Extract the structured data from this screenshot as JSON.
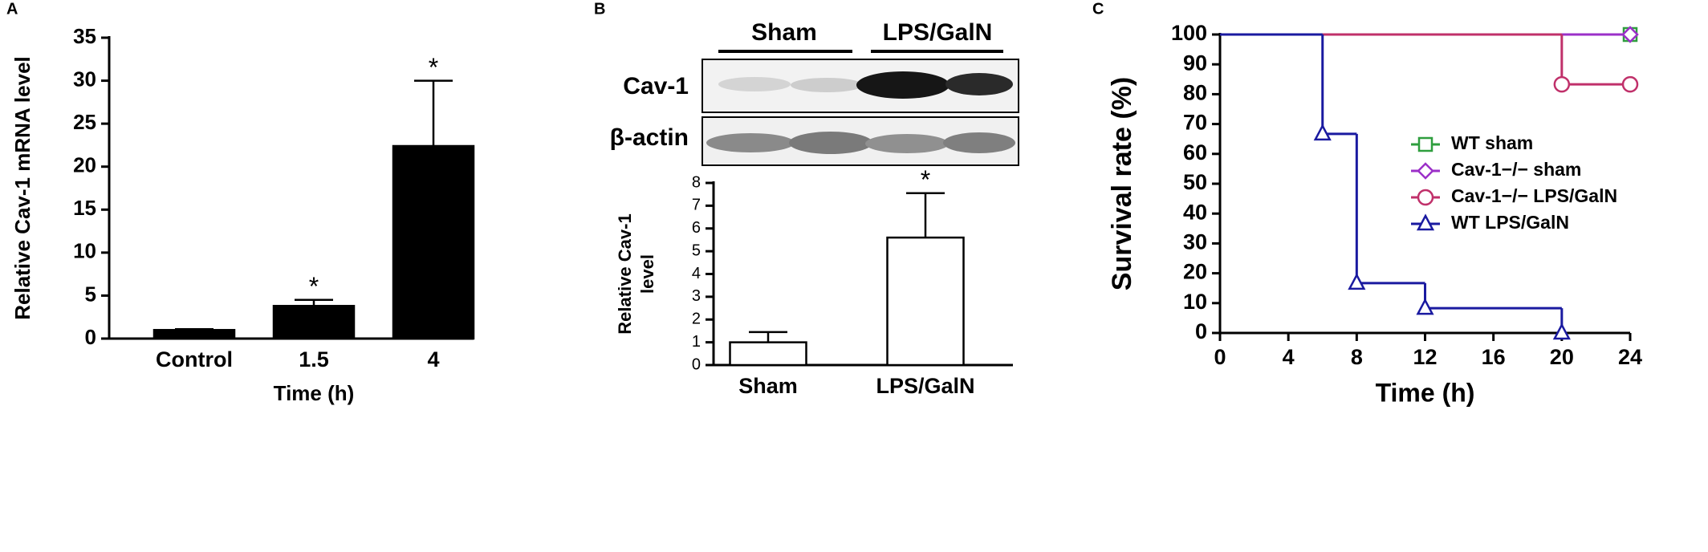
{
  "chart_data": [
    {
      "type": "bar",
      "panel": "A",
      "ylabel": "Relative Cav-1 mRNA level",
      "xlabel": "Time (h)",
      "categories": [
        "Control",
        "1.5",
        "4"
      ],
      "values": [
        1.0,
        3.8,
        22.4
      ],
      "errors": [
        0.1,
        0.7,
        7.6
      ],
      "significance": [
        null,
        "*",
        "*"
      ],
      "color": "#000000",
      "ylim": [
        0,
        35
      ],
      "yticks": [
        0,
        5,
        10,
        15,
        20,
        25,
        30,
        35
      ]
    },
    {
      "type": "bar",
      "panel": "B",
      "ylabel": [
        "Relative Cav-1",
        "level"
      ],
      "categories": [
        "Sham",
        "LPS/GalN"
      ],
      "values": [
        1.0,
        5.6
      ],
      "errors": [
        0.45,
        1.95
      ],
      "significance": [
        null,
        "*"
      ],
      "color": "#ffffff",
      "ylim": [
        0,
        8
      ],
      "yticks": [
        0,
        1,
        2,
        3,
        4,
        5,
        6,
        7,
        8
      ]
    },
    {
      "type": "line",
      "panel": "C",
      "ylabel": "Survival rate (%)",
      "xlabel": "Time (h)",
      "step": "post",
      "legend": "right",
      "xlim": [
        0,
        24
      ],
      "xticks": [
        0,
        4,
        8,
        12,
        16,
        20,
        24
      ],
      "ylim": [
        0,
        100
      ],
      "yticks": [
        0,
        10,
        20,
        30,
        40,
        50,
        60,
        70,
        80,
        90,
        100
      ],
      "series": [
        {
          "name": "WT sham",
          "color": "#2e9e3e",
          "marker": "square",
          "x": [
            0,
            24
          ],
          "values": [
            100,
            100
          ]
        },
        {
          "name": "Cav-1−/− sham",
          "color": "#9b30c8",
          "marker": "diamond",
          "x": [
            0,
            24
          ],
          "values": [
            100,
            100
          ]
        },
        {
          "name": "Cav-1−/− LPS/GalN",
          "color": "#c0306a",
          "marker": "circle",
          "x": [
            0,
            20,
            24
          ],
          "values": [
            100,
            83.3,
            83.3
          ]
        },
        {
          "name": "WT LPS/GalN",
          "color": "#1a1aa0",
          "marker": "triangle",
          "x": [
            0,
            6,
            8,
            12,
            20
          ],
          "values": [
            100,
            66.7,
            16.7,
            8.3,
            0
          ]
        }
      ]
    }
  ],
  "blot": {
    "column_labels": [
      "Sham",
      "LPS/GalN"
    ],
    "row_labels": [
      "Cav-1",
      "β-actin"
    ]
  }
}
